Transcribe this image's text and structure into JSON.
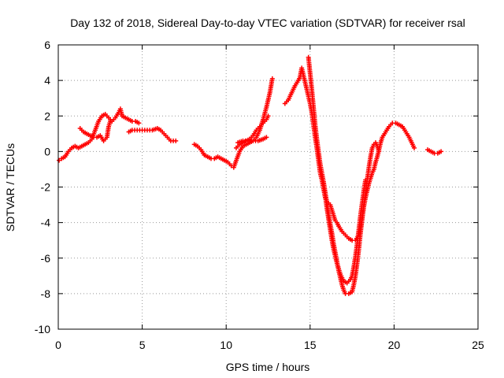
{
  "chart_data": {
    "type": "scatter",
    "title": "Day 132 of 2018, Sidereal Day-to-day VTEC variation (SDTVAR) for receiver rsal",
    "xlabel": "GPS time / hours",
    "ylabel": "SDTVAR / TECUs",
    "xlim": [
      0,
      25
    ],
    "ylim": [
      -10,
      6
    ],
    "xticks": [
      0,
      5,
      10,
      15,
      20,
      25
    ],
    "yticks": [
      -10,
      -8,
      -6,
      -4,
      -2,
      0,
      2,
      4,
      6
    ],
    "grid": true,
    "marker": "+",
    "color": "#ff0000",
    "series": [
      {
        "name": "SDTVAR",
        "segments": [
          [
            [
              0.05,
              -0.5
            ],
            [
              0.2,
              -0.4
            ],
            [
              0.4,
              -0.3
            ],
            [
              0.6,
              0.0
            ],
            [
              0.8,
              0.2
            ],
            [
              1.0,
              0.3
            ],
            [
              1.2,
              0.2
            ],
            [
              1.4,
              0.3
            ],
            [
              1.6,
              0.4
            ],
            [
              1.8,
              0.5
            ],
            [
              2.0,
              0.7
            ],
            [
              2.2,
              1.2
            ],
            [
              2.4,
              1.7
            ],
            [
              2.6,
              2.0
            ],
            [
              2.8,
              2.1
            ],
            [
              3.0,
              1.9
            ],
            [
              3.2,
              1.7
            ],
            [
              3.4,
              1.9
            ],
            [
              3.6,
              2.2
            ],
            [
              3.7,
              2.4
            ],
            [
              3.8,
              2.0
            ],
            [
              4.0,
              1.9
            ],
            [
              4.2,
              1.8
            ],
            [
              4.4,
              1.7
            ],
            [
              4.6,
              1.7
            ],
            [
              4.8,
              1.6
            ]
          ],
          [
            [
              1.3,
              1.3
            ],
            [
              1.5,
              1.1
            ],
            [
              1.7,
              1.0
            ],
            [
              1.9,
              0.9
            ],
            [
              2.1,
              0.8
            ],
            [
              2.3,
              0.8
            ],
            [
              2.5,
              0.9
            ],
            [
              2.7,
              0.6
            ],
            [
              2.9,
              0.8
            ],
            [
              3.0,
              1.4
            ],
            [
              3.1,
              1.7
            ]
          ],
          [
            [
              4.2,
              1.1
            ],
            [
              4.4,
              1.2
            ],
            [
              4.7,
              1.2
            ],
            [
              5.0,
              1.2
            ],
            [
              5.3,
              1.2
            ],
            [
              5.6,
              1.2
            ],
            [
              5.9,
              1.3
            ],
            [
              6.1,
              1.2
            ],
            [
              6.3,
              1.0
            ],
            [
              6.5,
              0.8
            ],
            [
              6.7,
              0.6
            ],
            [
              7.0,
              0.6
            ]
          ],
          [
            [
              8.1,
              0.4
            ],
            [
              8.3,
              0.3
            ],
            [
              8.5,
              0.1
            ],
            [
              8.7,
              -0.2
            ],
            [
              8.9,
              -0.3
            ],
            [
              9.1,
              -0.4
            ],
            [
              9.3,
              -0.4
            ],
            [
              9.5,
              -0.3
            ],
            [
              9.7,
              -0.4
            ],
            [
              9.9,
              -0.5
            ],
            [
              10.1,
              -0.6
            ],
            [
              10.3,
              -0.8
            ],
            [
              10.45,
              -0.9
            ],
            [
              10.6,
              -0.5
            ],
            [
              10.8,
              0.0
            ],
            [
              11.0,
              0.3
            ],
            [
              11.2,
              0.4
            ],
            [
              11.4,
              0.5
            ],
            [
              11.6,
              0.6
            ],
            [
              11.8,
              0.8
            ],
            [
              12.0,
              1.2
            ],
            [
              12.2,
              1.8
            ],
            [
              12.4,
              2.5
            ],
            [
              12.6,
              3.3
            ],
            [
              12.75,
              4.1
            ]
          ],
          [
            [
              10.6,
              0.2
            ],
            [
              10.8,
              0.4
            ],
            [
              11.0,
              0.5
            ],
            [
              11.2,
              0.6
            ],
            [
              11.4,
              0.7
            ],
            [
              11.6,
              0.9
            ],
            [
              11.8,
              1.2
            ],
            [
              12.0,
              1.4
            ],
            [
              12.2,
              1.6
            ],
            [
              12.4,
              1.8
            ],
            [
              12.5,
              2.0
            ]
          ],
          [
            [
              10.7,
              0.5
            ],
            [
              11.0,
              0.6
            ],
            [
              11.3,
              0.6
            ],
            [
              11.6,
              0.6
            ],
            [
              11.9,
              0.6
            ],
            [
              12.2,
              0.7
            ],
            [
              12.4,
              0.8
            ]
          ],
          [
            [
              13.5,
              2.7
            ],
            [
              13.7,
              2.9
            ],
            [
              13.9,
              3.3
            ],
            [
              14.1,
              3.7
            ],
            [
              14.3,
              4.0
            ],
            [
              14.4,
              4.2
            ],
            [
              14.5,
              4.7
            ],
            [
              14.6,
              4.3
            ],
            [
              14.7,
              3.9
            ],
            [
              14.8,
              3.5
            ],
            [
              14.9,
              3.1
            ],
            [
              15.0,
              2.7
            ],
            [
              15.1,
              2.2
            ],
            [
              15.2,
              1.5
            ],
            [
              15.3,
              0.8
            ],
            [
              15.4,
              0.2
            ],
            [
              15.5,
              -0.5
            ],
            [
              15.6,
              -1.2
            ],
            [
              15.7,
              -1.6
            ],
            [
              15.8,
              -2.1
            ],
            [
              15.9,
              -2.6
            ],
            [
              16.0,
              -2.8
            ],
            [
              16.1,
              -2.9
            ],
            [
              16.2,
              -3.0
            ],
            [
              16.3,
              -3.3
            ],
            [
              16.4,
              -3.6
            ],
            [
              16.5,
              -3.9
            ],
            [
              16.6,
              -4.0
            ],
            [
              16.7,
              -4.2
            ],
            [
              16.9,
              -4.5
            ],
            [
              17.1,
              -4.7
            ],
            [
              17.3,
              -4.9
            ],
            [
              17.5,
              -5.0
            ],
            [
              17.7,
              -5.0
            ],
            [
              17.9,
              -4.7
            ],
            [
              18.0,
              -4.3
            ],
            [
              18.1,
              -3.7
            ],
            [
              18.2,
              -3.1
            ],
            [
              18.3,
              -2.6
            ],
            [
              18.4,
              -2.2
            ],
            [
              18.5,
              -1.8
            ],
            [
              18.6,
              -1.5
            ],
            [
              18.7,
              -1.2
            ],
            [
              18.8,
              -1.0
            ],
            [
              18.9,
              -0.6
            ],
            [
              19.0,
              -0.3
            ],
            [
              19.1,
              0.1
            ],
            [
              19.2,
              0.5
            ],
            [
              19.3,
              0.8
            ],
            [
              19.5,
              1.1
            ],
            [
              19.7,
              1.4
            ],
            [
              19.9,
              1.6
            ],
            [
              20.1,
              1.6
            ],
            [
              20.3,
              1.5
            ],
            [
              20.5,
              1.4
            ],
            [
              20.7,
              1.1
            ],
            [
              20.9,
              0.8
            ],
            [
              21.1,
              0.4
            ],
            [
              21.2,
              0.2
            ]
          ],
          [
            [
              14.9,
              5.3
            ],
            [
              15.0,
              4.4
            ],
            [
              15.1,
              3.5
            ],
            [
              15.2,
              2.5
            ],
            [
              15.3,
              1.5
            ],
            [
              15.4,
              0.7
            ],
            [
              15.5,
              0.0
            ],
            [
              15.6,
              -0.7
            ],
            [
              15.7,
              -1.2
            ],
            [
              15.8,
              -1.7
            ],
            [
              15.9,
              -2.3
            ],
            [
              16.0,
              -2.9
            ],
            [
              16.1,
              -3.5
            ],
            [
              16.2,
              -4.1
            ],
            [
              16.3,
              -4.6
            ],
            [
              16.4,
              -5.2
            ],
            [
              16.5,
              -5.7
            ],
            [
              16.6,
              -6.2
            ],
            [
              16.7,
              -6.7
            ],
            [
              16.8,
              -7.1
            ],
            [
              16.9,
              -7.5
            ],
            [
              17.0,
              -7.8
            ],
            [
              17.1,
              -8.0
            ],
            [
              17.3,
              -8.0
            ],
            [
              17.5,
              -7.9
            ],
            [
              17.6,
              -7.5
            ],
            [
              17.7,
              -7.0
            ],
            [
              17.8,
              -6.3
            ],
            [
              17.9,
              -5.5
            ],
            [
              18.0,
              -4.6
            ],
            [
              18.1,
              -3.8
            ],
            [
              18.2,
              -3.0
            ],
            [
              18.3,
              -2.3
            ],
            [
              18.4,
              -1.6
            ],
            [
              18.5,
              -0.9
            ],
            [
              18.6,
              -0.3
            ],
            [
              18.7,
              0.2
            ],
            [
              18.8,
              0.4
            ],
            [
              18.9,
              0.5
            ],
            [
              19.0,
              0.3
            ],
            [
              19.1,
              0.0
            ]
          ],
          [
            [
              15.8,
              -1.8
            ],
            [
              15.9,
              -2.5
            ],
            [
              16.0,
              -3.2
            ],
            [
              16.1,
              -3.8
            ],
            [
              16.2,
              -4.4
            ],
            [
              16.3,
              -5.0
            ],
            [
              16.4,
              -5.5
            ],
            [
              16.5,
              -5.9
            ],
            [
              16.6,
              -6.3
            ],
            [
              16.7,
              -6.6
            ],
            [
              16.8,
              -6.9
            ],
            [
              16.9,
              -7.1
            ],
            [
              17.0,
              -7.3
            ],
            [
              17.2,
              -7.4
            ],
            [
              17.4,
              -7.2
            ],
            [
              17.5,
              -7.0
            ],
            [
              17.6,
              -6.5
            ],
            [
              17.7,
              -5.9
            ],
            [
              17.8,
              -5.2
            ],
            [
              17.9,
              -4.4
            ],
            [
              18.0,
              -3.6
            ],
            [
              18.1,
              -2.9
            ],
            [
              18.2,
              -2.2
            ],
            [
              18.3,
              -1.6
            ]
          ],
          [
            [
              22.0,
              0.1
            ],
            [
              22.2,
              0.0
            ],
            [
              22.4,
              -0.1
            ],
            [
              22.6,
              -0.1
            ],
            [
              22.8,
              0.0
            ]
          ]
        ]
      }
    ]
  }
}
